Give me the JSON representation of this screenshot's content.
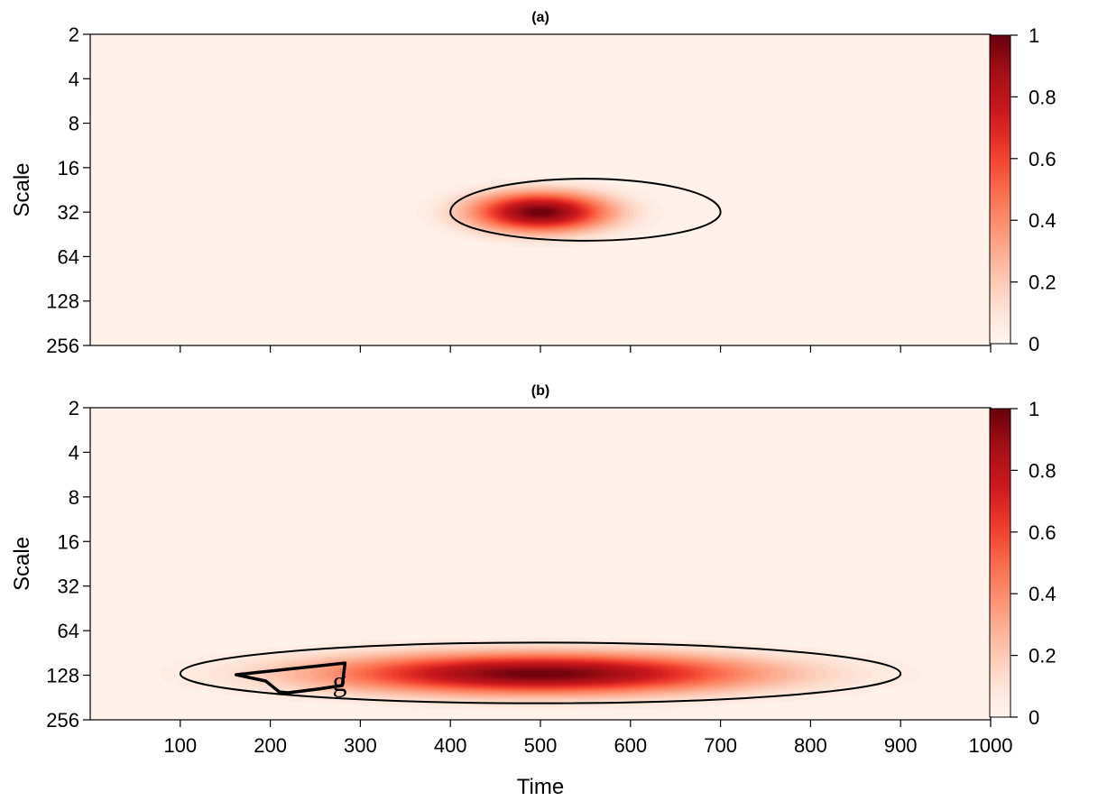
{
  "chart_data": [
    {
      "type": "heatmap",
      "title": "(a)",
      "ylabel": "Scale",
      "xlabel": "",
      "xlim": [
        0,
        1000
      ],
      "x_ticks": [
        100,
        200,
        300,
        400,
        500,
        600,
        700,
        800,
        900,
        1000
      ],
      "x_tick_labels_shown": false,
      "y_scale": "log2",
      "y_reversed": true,
      "y_ticks": [
        2,
        4,
        8,
        16,
        32,
        64,
        128,
        256
      ],
      "y_tick_labels": [
        "2",
        "4",
        "8",
        "16",
        "32",
        "64",
        "128",
        "256"
      ],
      "ylim": [
        2,
        256
      ],
      "colorbar": {
        "min": 0,
        "max": 1,
        "ticks": [
          0,
          0.2,
          0.4,
          0.6,
          0.8,
          1
        ],
        "tick_labels": [
          "0",
          "0.2",
          "0.4",
          "0.6",
          "0.8",
          "1"
        ],
        "color_low": "#fff5f0",
        "color_high": "#67000d"
      },
      "blob": {
        "center_time": 500,
        "center_scale": 32,
        "peak": 1.0,
        "time_sd": 55,
        "log2scale_sd": 0.32
      },
      "contours": [
        {
          "type": "ellipse",
          "time_from": 400,
          "time_to": 700,
          "scale_top": 19,
          "scale_bottom": 50,
          "peak_scale": 32
        }
      ],
      "annotations": []
    },
    {
      "type": "heatmap",
      "title": "(b)",
      "ylabel": "Scale",
      "xlabel": "Time",
      "xlim": [
        0,
        1000
      ],
      "x_ticks": [
        100,
        200,
        300,
        400,
        500,
        600,
        700,
        800,
        900,
        1000
      ],
      "x_tick_labels": [
        "100",
        "200",
        "300",
        "400",
        "500",
        "600",
        "700",
        "800",
        "900",
        "1000"
      ],
      "y_scale": "log2",
      "y_reversed": true,
      "y_ticks": [
        2,
        4,
        8,
        16,
        32,
        64,
        128,
        256
      ],
      "y_tick_labels": [
        "2",
        "4",
        "8",
        "16",
        "32",
        "64",
        "128",
        "256"
      ],
      "ylim": [
        2,
        256
      ],
      "colorbar": {
        "min": 0,
        "max": 1,
        "ticks": [
          0,
          0.2,
          0.4,
          0.6,
          0.8,
          1
        ],
        "tick_labels": [
          "0",
          "0.2",
          "0.4",
          "0.6",
          "0.8",
          "1"
        ],
        "color_low": "#fff5f0",
        "color_high": "#67000d"
      },
      "blob": {
        "center_time": 500,
        "center_scale": 125,
        "peak": 1.0,
        "time_sd": 170,
        "log2scale_sd": 0.33
      },
      "contours": [
        {
          "type": "ellipse",
          "time_from": 100,
          "time_to": 900,
          "scale_top": 77,
          "scale_bottom": 198,
          "peak_scale": 125
        },
        {
          "type": "polygon",
          "bold": true,
          "points": [
            [
              162,
              127
            ],
            [
              283,
              106
            ],
            [
              280,
              150
            ],
            [
              255,
              158
            ],
            [
              220,
              168
            ],
            [
              210,
              166
            ],
            [
              195,
              140
            ]
          ]
        }
      ],
      "annotations": [
        {
          "text": "g",
          "time": 277,
          "scale": 150
        }
      ]
    }
  ]
}
